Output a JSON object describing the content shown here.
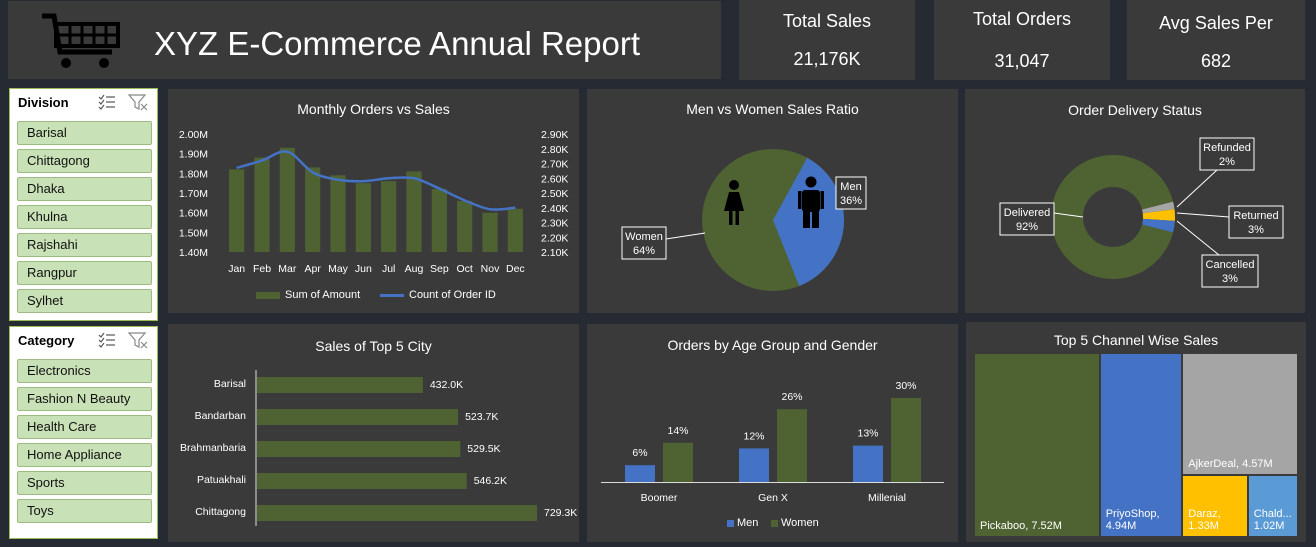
{
  "header": {
    "title": "XYZ E-Commerce Annual Report",
    "logo_icon": "shopping-cart-icon"
  },
  "kpis": [
    {
      "label": "Total Sales",
      "value": "21,176K"
    },
    {
      "label": "Total Orders",
      "value": "31,047"
    },
    {
      "label": "Avg Sales Per",
      "value": "682"
    }
  ],
  "slicers": {
    "division": {
      "title": "Division",
      "items": [
        "Barisal",
        "Chittagong",
        "Dhaka",
        "Khulna",
        "Rajshahi",
        "Rangpur",
        "Sylhet"
      ]
    },
    "category": {
      "title": "Category",
      "items": [
        "Electronics",
        "Fashion N Beauty",
        "Health Care",
        "Home Appliance",
        "Sports",
        "Toys"
      ]
    }
  },
  "colors": {
    "green": "#4e6232",
    "blue": "#4472c4",
    "grey": "#a5a5a5",
    "yellow": "#ffc000",
    "lightblue": "#5b9bd5",
    "panel": "#3a3a3a"
  },
  "chart_data": [
    {
      "type": "bar",
      "title": "Monthly Orders vs Sales",
      "categories": [
        "Jan",
        "Feb",
        "Mar",
        "Apr",
        "May",
        "Jun",
        "Jul",
        "Aug",
        "Sep",
        "Oct",
        "Nov",
        "Dec"
      ],
      "series": [
        {
          "name": "Sum of Amount",
          "type": "bar",
          "axis": "left",
          "values": [
            1.82,
            1.88,
            1.93,
            1.83,
            1.79,
            1.75,
            1.76,
            1.81,
            1.72,
            1.66,
            1.6,
            1.62
          ]
        },
        {
          "name": "Count of Order ID",
          "type": "line",
          "axis": "right",
          "values": [
            2.67,
            2.72,
            2.78,
            2.64,
            2.59,
            2.58,
            2.6,
            2.6,
            2.53,
            2.45,
            2.39,
            2.4
          ]
        }
      ],
      "y_left_ticks": [
        "2.00M",
        "1.90M",
        "1.80M",
        "1.70M",
        "1.60M",
        "1.50M",
        "1.40M"
      ],
      "y_right_ticks": [
        "2.90K",
        "2.80K",
        "2.70K",
        "2.60K",
        "2.50K",
        "2.40K",
        "2.30K",
        "2.20K",
        "2.10K"
      ],
      "ylim_left": [
        1.4,
        2.0
      ],
      "ylim_right": [
        2.1,
        2.9
      ],
      "legend": "bottom"
    },
    {
      "type": "pie",
      "title": "Men vs Women Sales Ratio",
      "slices": [
        {
          "label": "Men",
          "pct": "36%",
          "value": 36
        },
        {
          "label": "Women",
          "pct": "64%",
          "value": 64
        }
      ]
    },
    {
      "type": "pie",
      "title": "Order Delivery Status",
      "donut": true,
      "slices": [
        {
          "label": "Delivered",
          "pct": "92%",
          "value": 92
        },
        {
          "label": "Refunded",
          "pct": "2%",
          "value": 2
        },
        {
          "label": "Returned",
          "pct": "3%",
          "value": 3
        },
        {
          "label": "Cancelled",
          "pct": "3%",
          "value": 3
        }
      ]
    },
    {
      "type": "bar",
      "orientation": "horizontal",
      "title": "Sales of Top 5 City",
      "categories": [
        "Barisal",
        "Bandarban",
        "Brahmanbaria",
        "Patuakhali",
        "Chittagong"
      ],
      "values": [
        432.0,
        523.7,
        529.5,
        546.2,
        729.3
      ],
      "labels": [
        "432.0K",
        "523.7K",
        "529.5K",
        "546.2K",
        "729.3K"
      ]
    },
    {
      "type": "bar",
      "title": "Orders by Age Group and Gender",
      "categories": [
        "Boomer",
        "Gen X",
        "Millenial"
      ],
      "series": [
        {
          "name": "Men",
          "values": [
            6,
            12,
            13
          ],
          "labels": [
            "6%",
            "12%",
            "13%"
          ]
        },
        {
          "name": "Women",
          "values": [
            14,
            26,
            30
          ],
          "labels": [
            "14%",
            "26%",
            "30%"
          ]
        }
      ],
      "legend": "bottom"
    },
    {
      "type": "treemap",
      "title": "Top 5 Channel Wise Sales",
      "items": [
        {
          "label": "Pickaboo, 7.52M",
          "value": 7.52
        },
        {
          "label": "PriyoShop,\n4.94M",
          "value": 4.94
        },
        {
          "label": "AjkerDeal, 4.57M",
          "value": 4.57
        },
        {
          "label": "Daraz,\n1.33M",
          "value": 1.33
        },
        {
          "label": "Chald...\n1.02M",
          "value": 1.02
        }
      ]
    }
  ]
}
